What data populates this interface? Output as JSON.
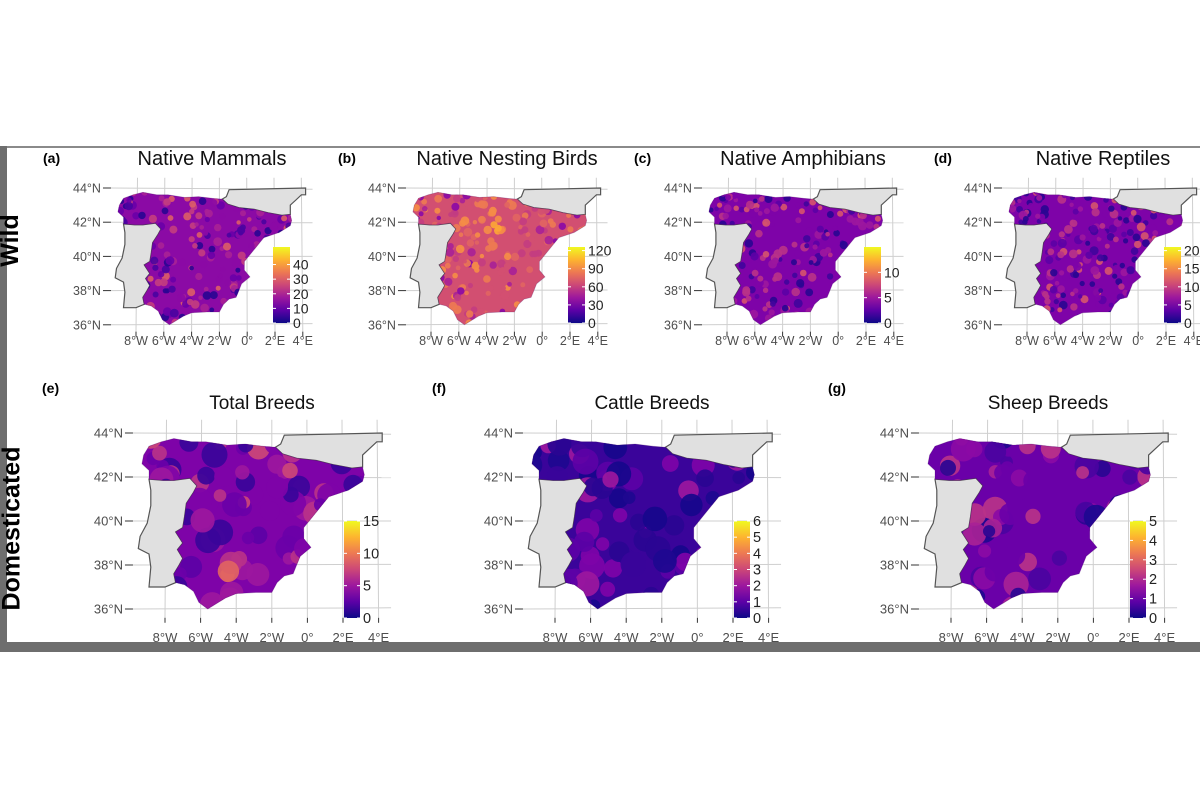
{
  "row_labels": {
    "wild": "Wild",
    "domesticated": "Domesticated"
  },
  "axes": {
    "lat_labels": [
      "44°N",
      "42°N",
      "40°N",
      "38°N",
      "36°N"
    ],
    "lat_values": [
      44,
      42,
      40,
      38,
      36
    ],
    "lon_labels": [
      "8°W",
      "6°W",
      "4°W",
      "2°W",
      "0°",
      "2°E",
      "4°E"
    ],
    "lon_values": [
      -8,
      -6,
      -4,
      -2,
      0,
      2,
      4
    ]
  },
  "colors": {
    "colorscale_plasma": [
      "#0d0887",
      "#5c01a6",
      "#9c179e",
      "#cc4778",
      "#ed7953",
      "#fdb42f",
      "#f0f921"
    ],
    "land_gray": "#e0e0e0",
    "border": "#555555",
    "graticule": "#cfcfcf",
    "axis_text": "#4d4d4d"
  },
  "panels": [
    {
      "tag": "(a)",
      "title": "Native Mammals",
      "row": "wild",
      "colorbar": {
        "ticks": [
          0,
          10,
          20,
          30,
          40
        ],
        "min": 0,
        "max": 52
      },
      "tones": [
        "#2a0593",
        "#4b03a1",
        "#6a00a8",
        "#8b0aa5",
        "#a82296",
        "#c33d80",
        "#db5c68",
        "#f1844b",
        "#fcae34"
      ]
    },
    {
      "tag": "(b)",
      "title": "Native Nesting Birds",
      "row": "wild",
      "colorbar": {
        "ticks": [
          0,
          30,
          60,
          90,
          120
        ],
        "min": 0,
        "max": 126
      },
      "tones": [
        "#8b0aa5",
        "#a82296",
        "#c33d80",
        "#d24f71",
        "#e16462",
        "#ed7953",
        "#f58c46",
        "#fca636",
        "#fdc328"
      ]
    },
    {
      "tag": "(c)",
      "title": "Native Amphibians",
      "row": "wild",
      "colorbar": {
        "ticks": [
          0,
          5,
          10
        ],
        "min": 0,
        "max": 15
      },
      "tones": [
        "#2a0593",
        "#41049d",
        "#5c01a6",
        "#7e03a8",
        "#9c179e",
        "#b83289",
        "#d5536f",
        "#ed7953",
        "#fca636"
      ]
    },
    {
      "tag": "(d)",
      "title": "Native Reptiles",
      "row": "wild",
      "colorbar": {
        "ticks": [
          0,
          5,
          10,
          15,
          20
        ],
        "min": 0,
        "max": 21
      },
      "tones": [
        "#2a0593",
        "#41049d",
        "#5c01a6",
        "#7e03a8",
        "#9c179e",
        "#b83289",
        "#d5536f",
        "#ed7953",
        "#fca636"
      ]
    },
    {
      "tag": "(e)",
      "title": "Total Breeds",
      "row": "domesticated",
      "colorbar": {
        "ticks": [
          0,
          5,
          10,
          15
        ],
        "min": 0,
        "max": 15
      },
      "tones": [
        "#3a049a",
        "#5c01a6",
        "#6a00a8",
        "#7e03a8",
        "#9c179e",
        "#b83289",
        "#cc4778",
        "#e16462",
        "#f89540"
      ]
    },
    {
      "tag": "(f)",
      "title": "Cattle Breeds",
      "row": "domesticated",
      "colorbar": {
        "ticks": [
          0,
          1,
          2,
          3,
          4,
          5,
          6
        ],
        "min": 0,
        "max": 6
      },
      "tones": [
        "#17068c",
        "#1e0890",
        "#2a0593",
        "#3a049a",
        "#5c01a6",
        "#7e03a8",
        "#9c179e",
        "#cc4778",
        "#ed7953"
      ]
    },
    {
      "tag": "(g)",
      "title": "Sheep Breeds",
      "row": "domesticated",
      "colorbar": {
        "ticks": [
          0,
          1,
          2,
          3,
          4,
          5
        ],
        "min": 0,
        "max": 5
      },
      "tones": [
        "#1e0890",
        "#2a0593",
        "#4b03a1",
        "#6a00a8",
        "#8b0aa5",
        "#a82296",
        "#b83289",
        "#c33d80",
        "#e8705b"
      ]
    }
  ]
}
